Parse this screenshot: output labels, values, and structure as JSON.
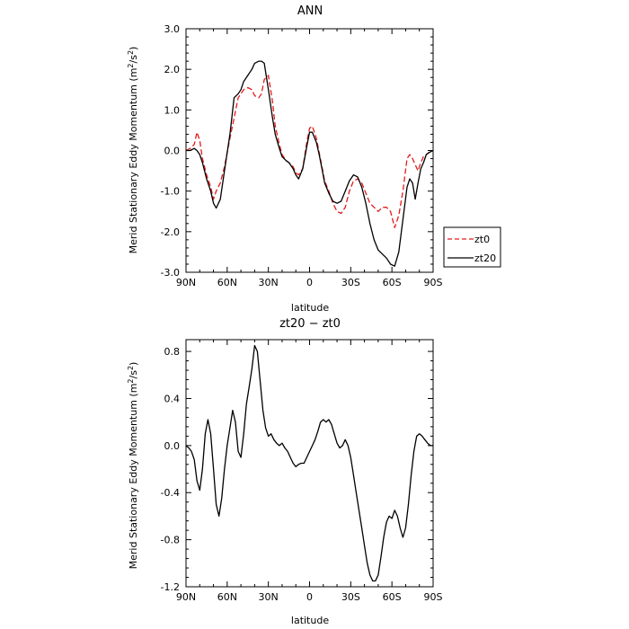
{
  "chart_data": [
    {
      "type": "line",
      "title": "ANN",
      "xlabel": "latitude",
      "ylabel": "Merid Stationary Eddy Momentum (m²/s²)",
      "ylabel_main": "Merid Stationary Eddy Momentum (m",
      "ylabel_exp": "2",
      "ylabel_mid": "/s",
      "ylabel_end": ")",
      "xlim": [
        90,
        -90
      ],
      "ylim": [
        -3.0,
        3.0
      ],
      "x_ticks": [
        90,
        60,
        30,
        0,
        -30,
        -60,
        -90
      ],
      "x_tick_labels": [
        "90N",
        "60N",
        "30N",
        "0",
        "30S",
        "60S",
        "90S"
      ],
      "y_ticks": [
        -3.0,
        -2.0,
        -1.0,
        0.0,
        1.0,
        2.0,
        3.0
      ],
      "y_tick_labels": [
        "-3.0",
        "-2.0",
        "-1.0",
        "0.0",
        "1.0",
        "2.0",
        "3.0"
      ],
      "legend_position": "right",
      "grid": false,
      "series": [
        {
          "name": "zt0",
          "color": "#e41a1c",
          "style": "dashed",
          "x": [
            90,
            87,
            84,
            82,
            80,
            78,
            75,
            72,
            70,
            68,
            65,
            62,
            58,
            55,
            52,
            50,
            48,
            45,
            42,
            40,
            37,
            35,
            33,
            30,
            27,
            25,
            22,
            20,
            17,
            15,
            12,
            10,
            8,
            5,
            2,
            0,
            -2,
            -5,
            -7,
            -9,
            -11,
            -14,
            -17,
            -20,
            -23,
            -26,
            -29,
            -32,
            -35,
            -38,
            -41,
            -44,
            -47,
            -50,
            -53,
            -56,
            -59,
            -62,
            -65,
            -68,
            -71,
            -73,
            -75,
            -77,
            -79,
            -81,
            -83,
            -85,
            -87,
            -90
          ],
          "y": [
            0.0,
            0.05,
            0.15,
            0.45,
            0.25,
            -0.2,
            -0.6,
            -0.9,
            -1.2,
            -1.0,
            -0.8,
            -0.4,
            0.3,
            0.8,
            1.3,
            1.4,
            1.5,
            1.55,
            1.5,
            1.35,
            1.3,
            1.4,
            1.75,
            1.85,
            1.2,
            0.6,
            0.15,
            -0.1,
            -0.25,
            -0.3,
            -0.4,
            -0.55,
            -0.6,
            -0.45,
            0.2,
            0.55,
            0.6,
            0.3,
            -0.05,
            -0.4,
            -0.75,
            -1.0,
            -1.3,
            -1.5,
            -1.55,
            -1.4,
            -1.0,
            -0.75,
            -0.7,
            -0.8,
            -1.05,
            -1.3,
            -1.4,
            -1.5,
            -1.4,
            -1.4,
            -1.5,
            -1.9,
            -1.6,
            -1.0,
            -0.2,
            -0.1,
            -0.2,
            -0.35,
            -0.5,
            -0.3,
            -0.15,
            -0.1,
            -0.05,
            0.0
          ]
        },
        {
          "name": "zt20",
          "color": "#000000",
          "style": "solid",
          "x": [
            90,
            87,
            84,
            82,
            80,
            78,
            75,
            72,
            70,
            68,
            65,
            62,
            58,
            55,
            52,
            50,
            48,
            45,
            42,
            40,
            37,
            35,
            33,
            30,
            27,
            25,
            22,
            20,
            17,
            15,
            12,
            10,
            8,
            5,
            2,
            0,
            -2,
            -5,
            -7,
            -9,
            -11,
            -14,
            -17,
            -20,
            -23,
            -26,
            -29,
            -32,
            -35,
            -38,
            -41,
            -44,
            -47,
            -50,
            -53,
            -56,
            -59,
            -62,
            -65,
            -68,
            -71,
            -73,
            -75,
            -77,
            -79,
            -81,
            -83,
            -85,
            -87,
            -90
          ],
          "y": [
            0.0,
            0.0,
            0.05,
            0.0,
            -0.1,
            -0.3,
            -0.7,
            -1.0,
            -1.3,
            -1.42,
            -1.2,
            -0.5,
            0.4,
            1.3,
            1.4,
            1.5,
            1.7,
            1.85,
            2.0,
            2.15,
            2.2,
            2.2,
            2.15,
            1.5,
            0.8,
            0.4,
            0.05,
            -0.15,
            -0.25,
            -0.3,
            -0.45,
            -0.6,
            -0.7,
            -0.45,
            0.1,
            0.45,
            0.45,
            0.2,
            -0.1,
            -0.45,
            -0.8,
            -1.05,
            -1.25,
            -1.3,
            -1.25,
            -1.0,
            -0.75,
            -0.6,
            -0.65,
            -0.9,
            -1.3,
            -1.8,
            -2.2,
            -2.45,
            -2.55,
            -2.65,
            -2.8,
            -2.85,
            -2.5,
            -1.7,
            -0.9,
            -0.7,
            -0.8,
            -1.2,
            -0.8,
            -0.45,
            -0.3,
            -0.1,
            -0.05,
            0.0
          ]
        }
      ]
    },
    {
      "type": "line",
      "title": "zt20 − zt0",
      "xlabel": "latitude",
      "ylabel": "Merid Stationary Eddy Momentum (m²/s²)",
      "ylabel_main": "Merid Stationary Eddy Momentum (m",
      "ylabel_exp": "2",
      "ylabel_mid": "/s",
      "ylabel_end": ")",
      "xlim": [
        90,
        -90
      ],
      "ylim": [
        -1.2,
        0.9
      ],
      "x_ticks": [
        90,
        60,
        30,
        0,
        -30,
        -60,
        -90
      ],
      "x_tick_labels": [
        "90N",
        "60N",
        "30N",
        "0",
        "30S",
        "60S",
        "90S"
      ],
      "y_ticks": [
        -1.2,
        -0.8,
        -0.4,
        0.0,
        0.4,
        0.8
      ],
      "y_tick_labels": [
        "-1.2",
        "-0.8",
        "-0.4",
        "0.0",
        "0.4",
        "0.8"
      ],
      "grid": false,
      "series": [
        {
          "color": "#000000",
          "style": "solid",
          "x": [
            90,
            88,
            86,
            84,
            82,
            80,
            78,
            76,
            74,
            72,
            70,
            68,
            66,
            64,
            62,
            60,
            58,
            56,
            54,
            52,
            50,
            48,
            46,
            44,
            42,
            40,
            38,
            36,
            34,
            32,
            30,
            28,
            26,
            24,
            22,
            20,
            18,
            16,
            14,
            12,
            10,
            8,
            6,
            4,
            2,
            0,
            -2,
            -4,
            -6,
            -8,
            -10,
            -12,
            -14,
            -16,
            -18,
            -20,
            -22,
            -24,
            -26,
            -28,
            -30,
            -32,
            -34,
            -36,
            -38,
            -40,
            -42,
            -44,
            -46,
            -48,
            -50,
            -52,
            -54,
            -56,
            -58,
            -60,
            -62,
            -64,
            -66,
            -68,
            -70,
            -72,
            -74,
            -76,
            -78,
            -80,
            -82,
            -84,
            -86,
            -88,
            -90
          ],
          "y": [
            0.0,
            -0.02,
            -0.05,
            -0.12,
            -0.3,
            -0.38,
            -0.2,
            0.1,
            0.22,
            0.1,
            -0.2,
            -0.5,
            -0.6,
            -0.45,
            -0.2,
            0.0,
            0.15,
            0.3,
            0.2,
            -0.05,
            -0.1,
            0.1,
            0.35,
            0.5,
            0.65,
            0.85,
            0.8,
            0.55,
            0.3,
            0.15,
            0.08,
            0.1,
            0.05,
            0.02,
            0.0,
            0.02,
            -0.02,
            -0.05,
            -0.1,
            -0.15,
            -0.18,
            -0.16,
            -0.15,
            -0.15,
            -0.1,
            -0.05,
            0.0,
            0.05,
            0.12,
            0.2,
            0.22,
            0.2,
            0.22,
            0.18,
            0.1,
            0.02,
            -0.02,
            0.0,
            0.05,
            0.0,
            -0.1,
            -0.25,
            -0.4,
            -0.55,
            -0.7,
            -0.85,
            -1.0,
            -1.1,
            -1.15,
            -1.15,
            -1.1,
            -0.95,
            -0.78,
            -0.65,
            -0.6,
            -0.62,
            -0.55,
            -0.6,
            -0.7,
            -0.78,
            -0.7,
            -0.5,
            -0.25,
            -0.05,
            0.08,
            0.1,
            0.08,
            0.05,
            0.02,
            0.0,
            0.0
          ]
        }
      ]
    }
  ]
}
